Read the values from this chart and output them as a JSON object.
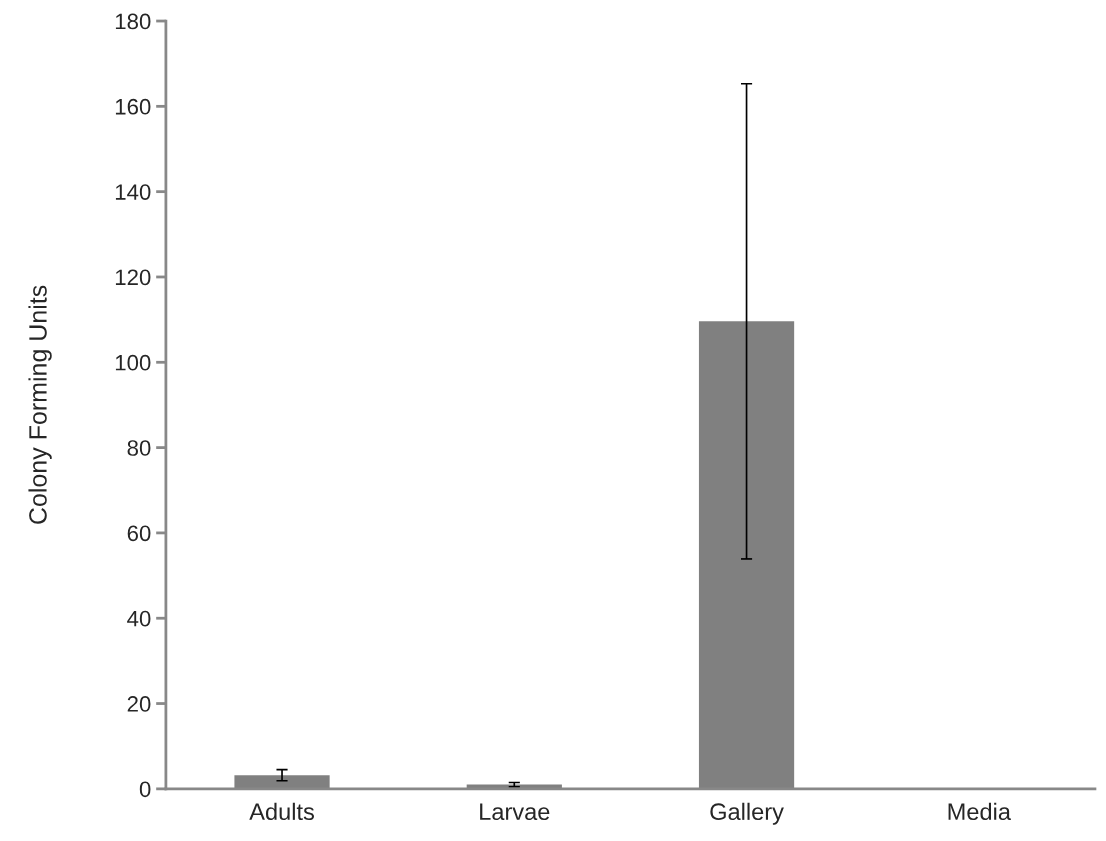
{
  "chart_data": {
    "type": "bar",
    "ylabel": "Colony Forming Units",
    "categories": [
      "Adults",
      "Larvae",
      "Gallery",
      "Media"
    ],
    "values": [
      3.2,
      1.0,
      109.6,
      0
    ],
    "errors": [
      1.3,
      0.5,
      55.7,
      null
    ],
    "color": "#808080",
    "ylim": [
      0,
      180
    ],
    "yticks": [
      0,
      20,
      40,
      60,
      80,
      100,
      120,
      140,
      160,
      180
    ],
    "grid": false,
    "legend": false
  }
}
